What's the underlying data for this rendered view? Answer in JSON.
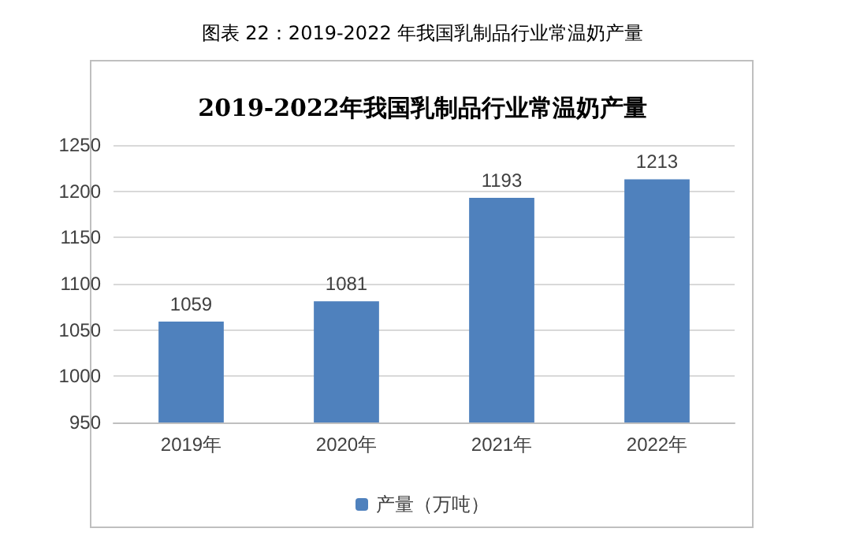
{
  "chart_data": {
    "type": "bar",
    "title": "图表 22：2019-2022 年我国乳制品行业常温奶产量",
    "subtitle": "2019-2022年我国乳制品行业常温奶产量",
    "categories": [
      "2019年",
      "2020年",
      "2021年",
      "2022年"
    ],
    "series": [
      {
        "name": "产量（万吨）",
        "color": "#4f81bd",
        "values": [
          1059,
          1081,
          1193,
          1213
        ]
      }
    ],
    "ylim": [
      950,
      1250
    ],
    "yticks": [
      950,
      1000,
      1050,
      1100,
      1150,
      1200,
      1250
    ],
    "grid": "y",
    "legend": "bottom",
    "data_labels": true
  }
}
